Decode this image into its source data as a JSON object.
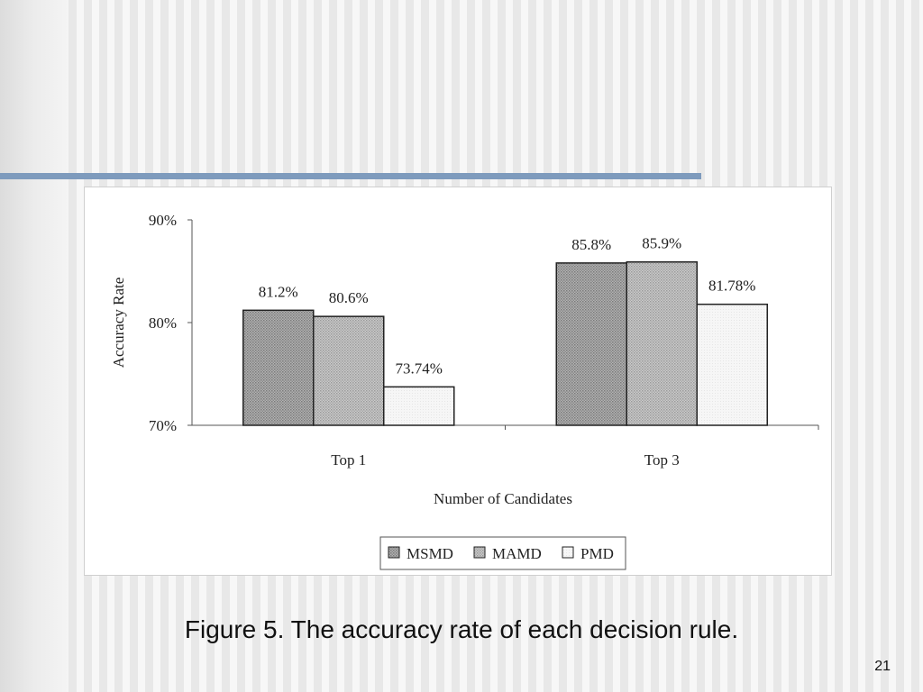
{
  "caption": "Figure 5. The accuracy rate of each decision rule.",
  "slide_number": "21",
  "chart_data": {
    "type": "bar",
    "categories": [
      "Top 1",
      "Top 3"
    ],
    "series": [
      {
        "name": "MSMD",
        "values": [
          81.2,
          85.8
        ],
        "labels": [
          "81.2%",
          "85.8%"
        ],
        "fill": "hatch-dark"
      },
      {
        "name": "MAMD",
        "values": [
          80.6,
          85.9
        ],
        "labels": [
          "80.6%",
          "85.9%"
        ],
        "fill": "hatch-medium"
      },
      {
        "name": "PMD",
        "values": [
          73.74,
          81.78
        ],
        "labels": [
          "73.74%",
          "81.78%"
        ],
        "fill": "hatch-light"
      }
    ],
    "ylim": [
      70,
      90
    ],
    "yticks": [
      70,
      80,
      90
    ],
    "ytick_labels": [
      "70%",
      "80%",
      "90%"
    ],
    "xlabel": "Number of Candidates",
    "ylabel": "Accuracy Rate",
    "grid": false,
    "legend_position": "bottom-center"
  }
}
